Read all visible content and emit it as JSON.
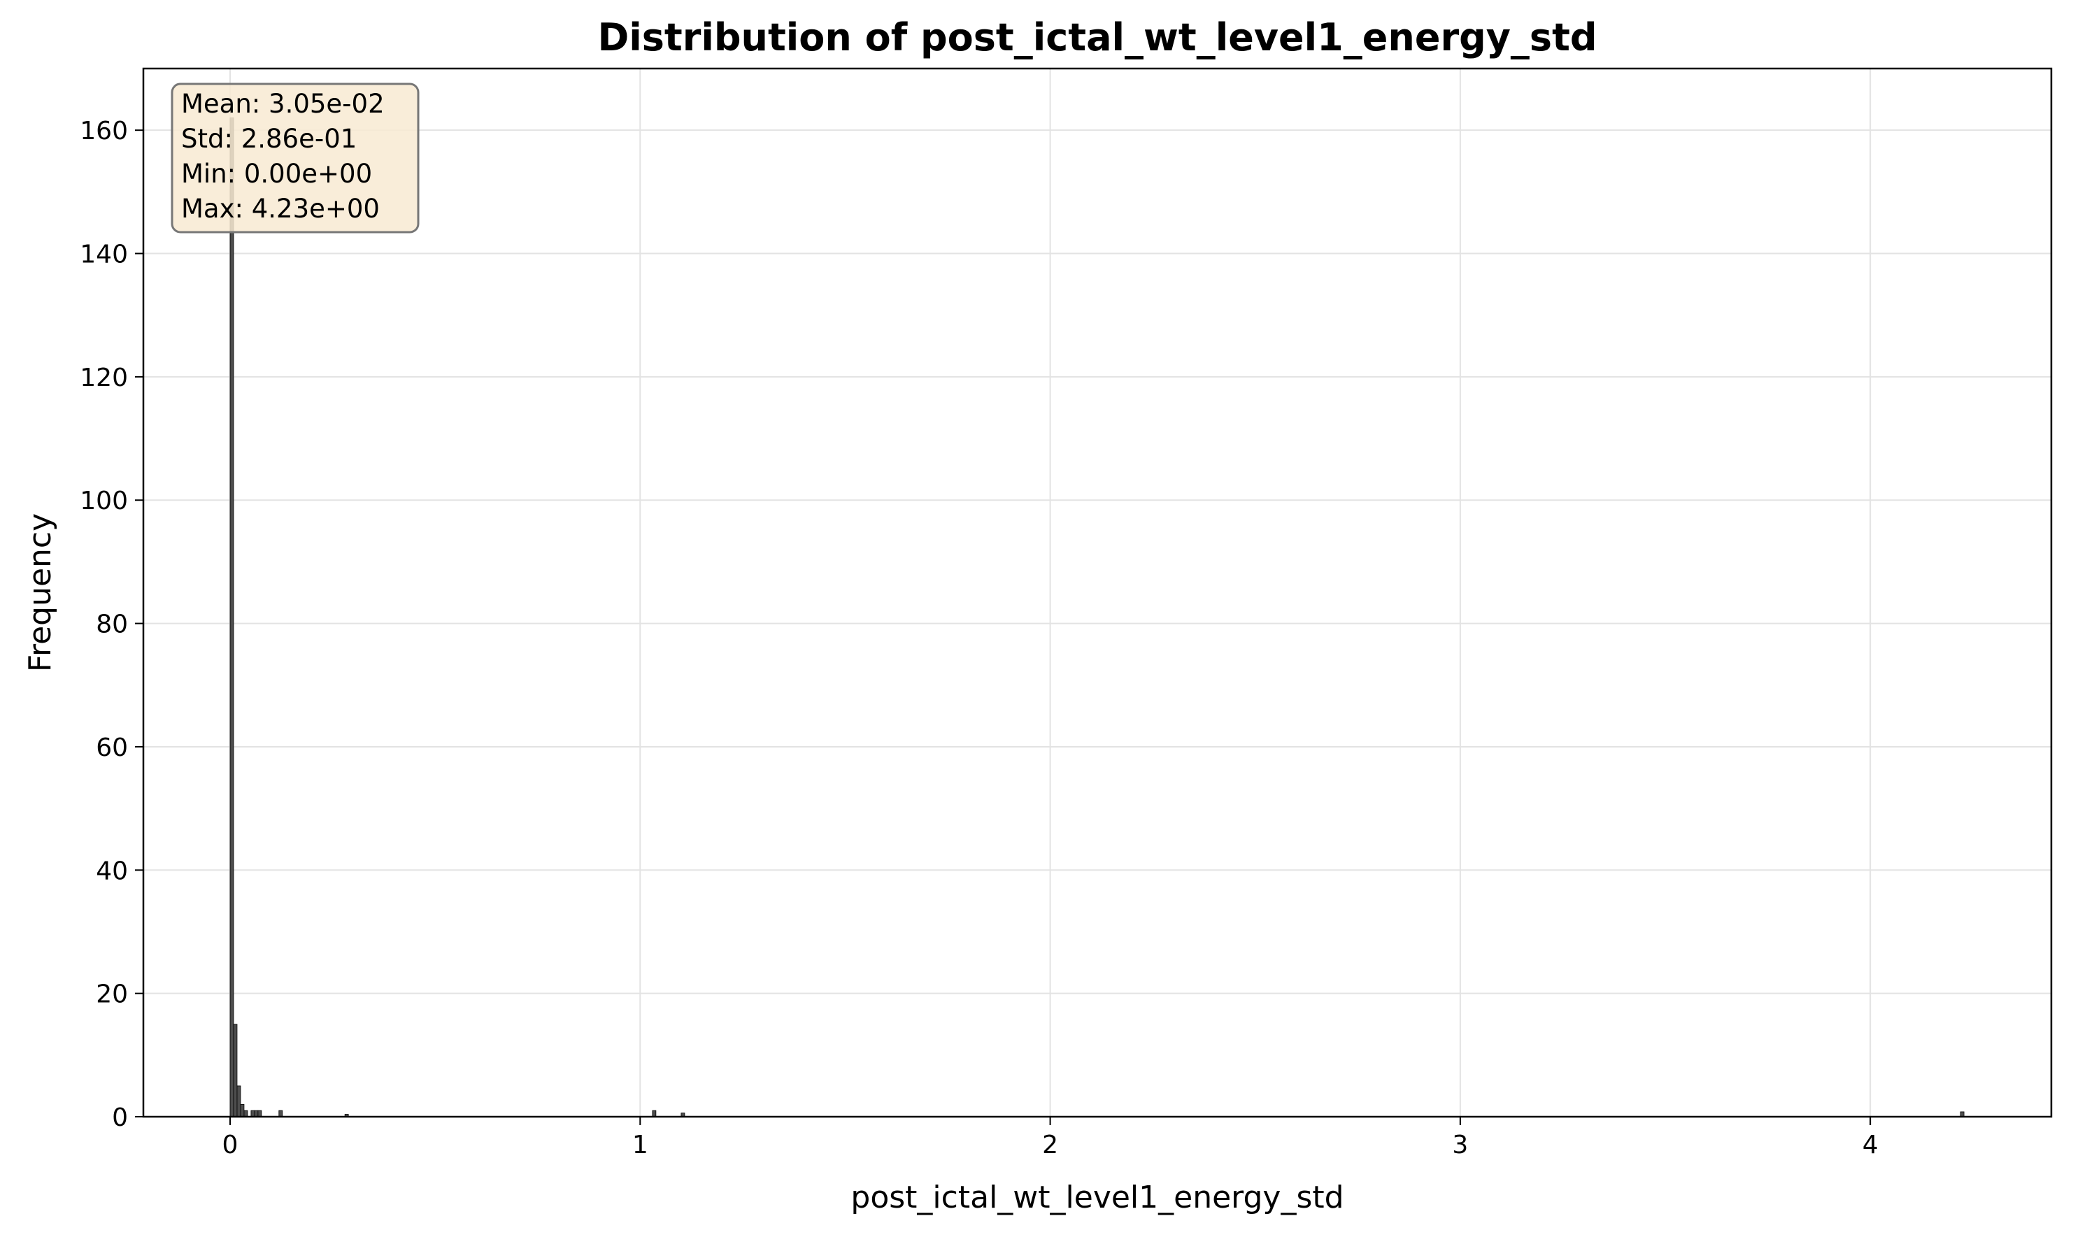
{
  "chart_data": {
    "type": "bar",
    "title": "Distribution of post_ictal_wt_level1_energy_std",
    "xlabel": "post_ictal_wt_level1_energy_std",
    "ylabel": "Frequency",
    "xlim": [
      -0.2115,
      4.4415
    ],
    "ylim": [
      0,
      170
    ],
    "xticks": [
      0,
      1,
      2,
      3,
      4
    ],
    "yticks": [
      0,
      20,
      40,
      60,
      80,
      100,
      120,
      140,
      160
    ],
    "grid": true,
    "bin_width": 0.0085,
    "bar_color": "#4d4d4d",
    "bins": [
      {
        "x": 0.0,
        "count": 162
      },
      {
        "x": 0.0085,
        "count": 15
      },
      {
        "x": 0.017,
        "count": 5
      },
      {
        "x": 0.0255,
        "count": 2
      },
      {
        "x": 0.034,
        "count": 1
      },
      {
        "x": 0.051,
        "count": 1
      },
      {
        "x": 0.0595,
        "count": 1
      },
      {
        "x": 0.068,
        "count": 1
      },
      {
        "x": 0.119,
        "count": 1
      },
      {
        "x": 0.28,
        "count": 0.4
      },
      {
        "x": 1.03,
        "count": 1
      },
      {
        "x": 1.1,
        "count": 0.6
      },
      {
        "x": 4.22,
        "count": 0.8
      }
    ],
    "stats_box": {
      "lines": [
        "Mean: 3.05e-02",
        "Std: 2.86e-01",
        "Min: 0.00e+00",
        "Max: 4.23e+00"
      ],
      "background": "#f8ead2",
      "edge_color": "#777777",
      "placement": "top-left"
    }
  }
}
